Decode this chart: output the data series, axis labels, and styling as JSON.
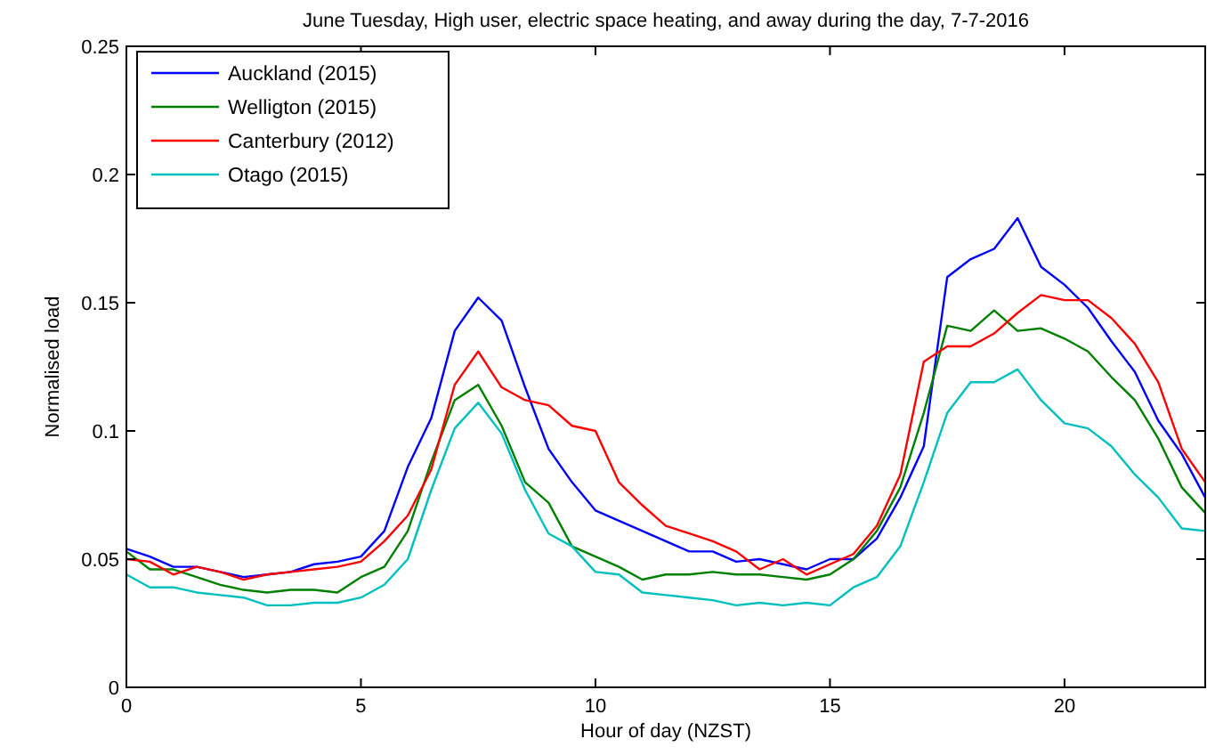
{
  "chart_data": {
    "type": "line",
    "title": "June Tuesday, High user, electric space heating, and away during the day, 7-7-2016",
    "xlabel": "Hour of day (NZST)",
    "ylabel": "Normalised load",
    "x": [
      0,
      0.5,
      1,
      1.5,
      2,
      2.5,
      3,
      3.5,
      4,
      4.5,
      5,
      5.5,
      6,
      6.5,
      7,
      7.5,
      8,
      8.5,
      9,
      9.5,
      10,
      10.5,
      11,
      11.5,
      12,
      12.5,
      13,
      13.5,
      14,
      14.5,
      15,
      15.5,
      16,
      16.5,
      17,
      17.5,
      18,
      18.5,
      19,
      19.5,
      20,
      20.5,
      21,
      21.5,
      22,
      22.5,
      23
    ],
    "series": [
      {
        "name": "Auckland (2015)",
        "color": "#0000ff",
        "values": [
          0.054,
          0.051,
          0.047,
          0.047,
          0.045,
          0.043,
          0.044,
          0.045,
          0.048,
          0.049,
          0.051,
          0.061,
          0.086,
          0.105,
          0.139,
          0.152,
          0.143,
          0.117,
          0.093,
          0.08,
          0.069,
          0.065,
          0.061,
          0.057,
          0.053,
          0.053,
          0.049,
          0.05,
          0.048,
          0.046,
          0.05,
          0.05,
          0.058,
          0.074,
          0.094,
          0.16,
          0.167,
          0.171,
          0.183,
          0.164,
          0.157,
          0.148,
          0.135,
          0.123,
          0.104,
          0.091,
          0.074
        ]
      },
      {
        "name": "Welligton (2015)",
        "color": "#008000",
        "values": [
          0.053,
          0.046,
          0.046,
          0.043,
          0.04,
          0.038,
          0.037,
          0.038,
          0.038,
          0.037,
          0.043,
          0.047,
          0.061,
          0.088,
          0.112,
          0.118,
          0.102,
          0.08,
          0.072,
          0.055,
          0.051,
          0.047,
          0.042,
          0.044,
          0.044,
          0.045,
          0.044,
          0.044,
          0.043,
          0.042,
          0.044,
          0.05,
          0.061,
          0.078,
          0.107,
          0.141,
          0.139,
          0.147,
          0.139,
          0.14,
          0.136,
          0.131,
          0.121,
          0.112,
          0.097,
          0.078,
          0.068
        ]
      },
      {
        "name": "Canterbury (2012)",
        "color": "#ff0000",
        "values": [
          0.05,
          0.049,
          0.044,
          0.047,
          0.045,
          0.042,
          0.044,
          0.045,
          0.046,
          0.047,
          0.049,
          0.057,
          0.067,
          0.085,
          0.118,
          0.131,
          0.117,
          0.112,
          0.11,
          0.102,
          0.1,
          0.08,
          0.071,
          0.063,
          0.06,
          0.057,
          0.053,
          0.046,
          0.05,
          0.044,
          0.048,
          0.052,
          0.063,
          0.083,
          0.127,
          0.133,
          0.133,
          0.138,
          0.146,
          0.153,
          0.151,
          0.151,
          0.144,
          0.134,
          0.119,
          0.093,
          0.08
        ]
      },
      {
        "name": "Otago (2015)",
        "color": "#00bfbf",
        "values": [
          0.044,
          0.039,
          0.039,
          0.037,
          0.036,
          0.035,
          0.032,
          0.032,
          0.033,
          0.033,
          0.035,
          0.04,
          0.05,
          0.077,
          0.101,
          0.111,
          0.099,
          0.077,
          0.06,
          0.055,
          0.045,
          0.044,
          0.037,
          0.036,
          0.035,
          0.034,
          0.032,
          0.033,
          0.032,
          0.033,
          0.032,
          0.039,
          0.043,
          0.055,
          0.08,
          0.107,
          0.119,
          0.119,
          0.124,
          0.112,
          0.103,
          0.101,
          0.094,
          0.083,
          0.074,
          0.062,
          0.061
        ]
      }
    ],
    "xlim": [
      0,
      23
    ],
    "ylim": [
      0,
      0.25
    ],
    "xticks": [
      0,
      5,
      10,
      15,
      20
    ],
    "yticks": [
      0,
      0.05,
      0.1,
      0.15,
      0.2,
      0.25
    ],
    "grid": false,
    "legend": "top left"
  }
}
